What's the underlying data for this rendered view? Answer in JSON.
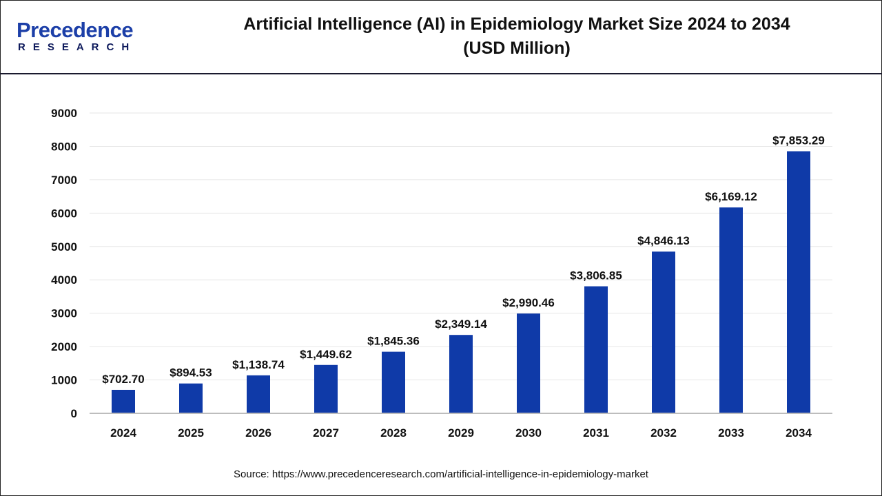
{
  "header": {
    "logo_top": "Precedence",
    "logo_bottom": "RESEARCH",
    "title_line1": "Artificial Intelligence (AI) in Epidemiology Market Size 2024 to 2034",
    "title_line2": "(USD Million)"
  },
  "source": "Source: https://www.precedenceresearch.com/artificial-intelligence-in-epidemiology-market",
  "chart_data": {
    "type": "bar",
    "title": "Artificial Intelligence (AI) in Epidemiology Market Size 2024 to 2034 (USD Million)",
    "categories": [
      "2024",
      "2025",
      "2026",
      "2027",
      "2028",
      "2029",
      "2030",
      "2031",
      "2032",
      "2033",
      "2034"
    ],
    "values": [
      702.7,
      894.53,
      1138.74,
      1449.62,
      1845.36,
      2349.14,
      2990.46,
      3806.85,
      4846.13,
      6169.12,
      7853.29
    ],
    "data_labels": [
      "$702.70",
      "$894.53",
      "$1,138.74",
      "$1,449.62",
      "$1,845.36",
      "$2,349.14",
      "$2,990.46",
      "$3,806.85",
      "$4,846.13",
      "$6,169.12",
      "$7,853.29"
    ],
    "ylim": [
      0,
      9000
    ],
    "yticks": [
      0,
      1000,
      2000,
      3000,
      4000,
      5000,
      6000,
      7000,
      8000,
      9000
    ],
    "grid": true,
    "bar_color": "#0f3aa8"
  }
}
